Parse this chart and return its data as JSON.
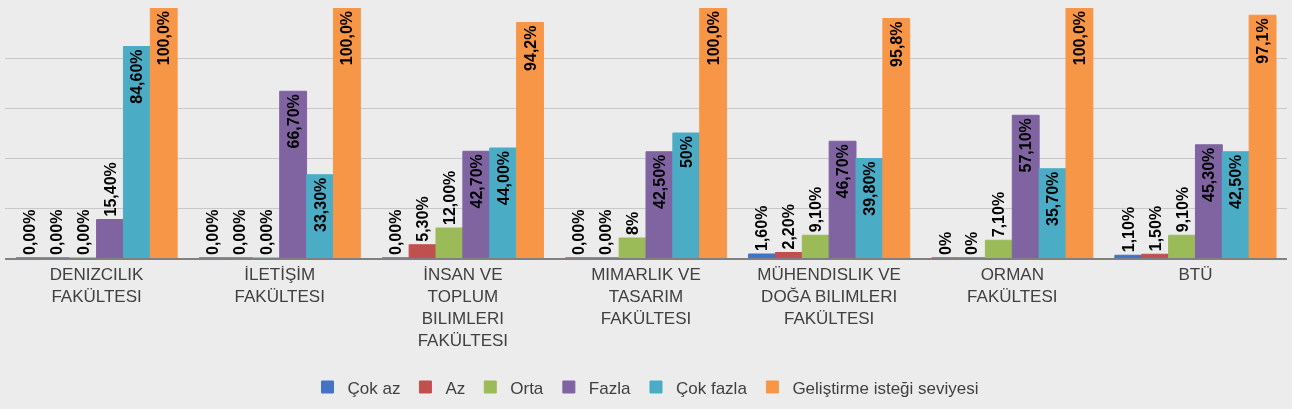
{
  "chart_data": {
    "type": "bar",
    "categories": [
      "DENIZCILIK\nFAKÜLTESI",
      "İLETİŞİM\nFAKÜLTESI",
      "İNSAN VE\nTOPLUM\nBILIMLERI\nFAKÜLTESI",
      "MIMARLIK VE\nTASARIM\nFAKÜLTESI",
      "MÜHENDISLIK VE\nDOĞA BILIMLERI\nFAKÜLTESI",
      "ORMAN\nFAKÜLTESI",
      "BTÜ"
    ],
    "series": [
      {
        "name": "Çok az",
        "color": "#4472c4",
        "values": [
          0,
          0,
          0,
          0,
          1.6,
          0,
          1.1
        ],
        "value_labels": [
          "0,00%",
          "0,00%",
          "0,00%",
          "0,00%",
          "1,60%",
          "0%",
          "1,10%"
        ]
      },
      {
        "name": "Az",
        "color": "#c0504d",
        "values": [
          0,
          0,
          5.3,
          0,
          2.2,
          0,
          1.5
        ],
        "value_labels": [
          "0,00%",
          "0,00%",
          "5,30%",
          "0,00%",
          "2,20%",
          "0%",
          "1,50%"
        ]
      },
      {
        "name": "Orta",
        "color": "#9bbb59",
        "values": [
          0,
          0,
          12.0,
          8,
          9.1,
          7.1,
          9.1
        ],
        "value_labels": [
          "0,00%",
          "0,00%",
          "12,00%",
          "8%",
          "9,10%",
          "7,10%",
          "9,10%"
        ]
      },
      {
        "name": "Fazla",
        "color": "#8064a2",
        "values": [
          15.4,
          66.7,
          42.7,
          42.5,
          46.7,
          57.1,
          45.3
        ],
        "value_labels": [
          "15,40%",
          "66,70%",
          "42,70%",
          "42,50%",
          "46,70%",
          "57,10%",
          "45,30%"
        ]
      },
      {
        "name": "Çok fazla",
        "color": "#4bacc6",
        "values": [
          84.6,
          33.3,
          44.0,
          50,
          39.8,
          35.7,
          42.5
        ],
        "value_labels": [
          "84,60%",
          "33,30%",
          "44,00%",
          "50%",
          "39,80%",
          "35,70%",
          "42,50%"
        ]
      },
      {
        "name": "Geliştirme isteği seviyesi",
        "color": "#f79646",
        "values": [
          100,
          100,
          94.2,
          100,
          95.8,
          100,
          97.1
        ],
        "value_labels": [
          "100,0%",
          "100,0%",
          "94,2%",
          "100,0%",
          "95,8%",
          "100,0%",
          "97,1%"
        ]
      }
    ],
    "ylim": [
      0,
      100
    ],
    "yticks": [
      {
        "value": 0,
        "label": null
      },
      {
        "value": 20,
        "label": null
      },
      {
        "value": 40,
        "label": null
      },
      {
        "value": 60,
        "label": null
      },
      {
        "value": 80,
        "label": null
      }
    ],
    "grid": "y",
    "legend": "bottom",
    "tick_labels": "x"
  }
}
